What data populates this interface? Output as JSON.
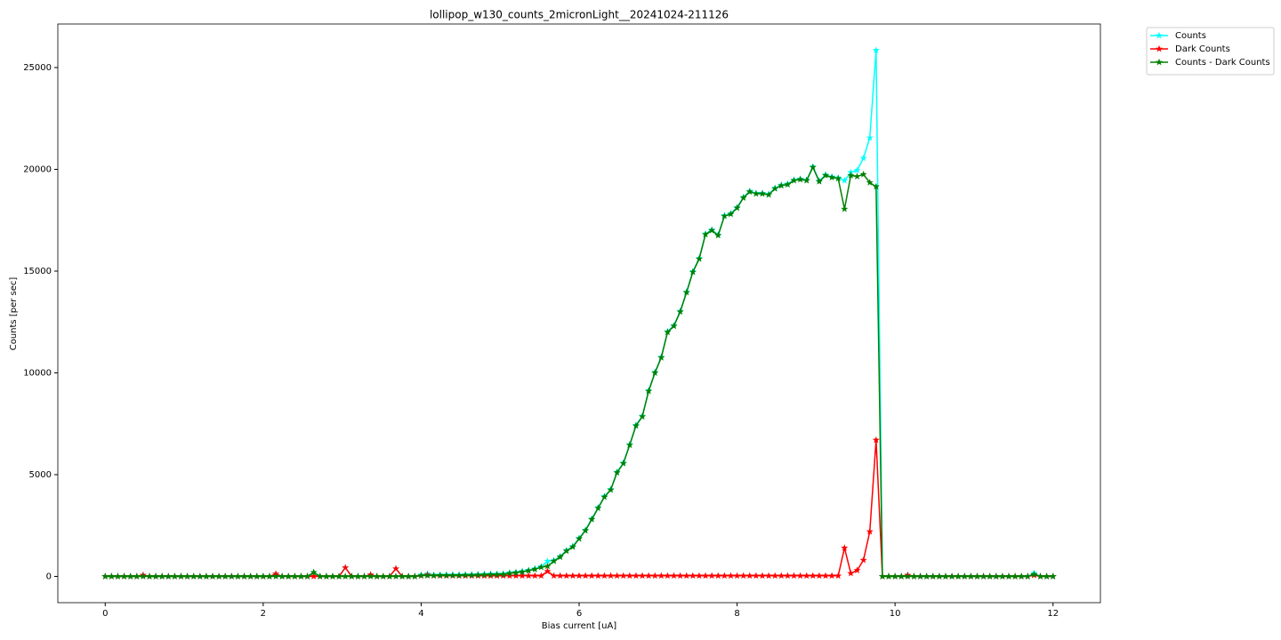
{
  "chart_data": {
    "type": "line",
    "title": "lollipop_w130_counts_2micronLight__20241024-211126",
    "xlabel": "Bias current [uA]",
    "ylabel": "Counts [per sec]",
    "xlim": [
      -0.6,
      12.6
    ],
    "ylim": [
      -1290,
      27140
    ],
    "xticks": [
      0,
      2,
      4,
      6,
      8,
      10,
      12
    ],
    "yticks": [
      0,
      5000,
      10000,
      15000,
      20000,
      25000
    ],
    "legend": "outside upper right",
    "x": [
      0,
      0.08,
      0.16,
      0.24,
      0.32,
      0.4,
      0.48,
      0.56,
      0.64,
      0.72,
      0.8,
      0.88,
      0.96,
      1.04,
      1.12,
      1.2,
      1.28,
      1.36,
      1.44,
      1.52,
      1.6,
      1.68,
      1.76,
      1.84,
      1.92,
      2,
      2.08,
      2.16,
      2.24,
      2.32,
      2.4,
      2.48,
      2.56,
      2.64,
      2.72,
      2.8,
      2.88,
      2.96,
      3.04,
      3.12,
      3.2,
      3.28,
      3.36,
      3.44,
      3.52,
      3.6,
      3.68,
      3.76,
      3.84,
      3.92,
      4,
      4.08,
      4.16,
      4.24,
      4.32,
      4.4,
      4.48,
      4.56,
      4.64,
      4.72,
      4.8,
      4.88,
      4.96,
      5.04,
      5.12,
      5.2,
      5.28,
      5.36,
      5.44,
      5.52,
      5.6,
      5.68,
      5.76,
      5.84,
      5.92,
      6,
      6.08,
      6.16,
      6.24,
      6.32,
      6.4,
      6.48,
      6.56,
      6.64,
      6.72,
      6.8,
      6.88,
      6.96,
      7.04,
      7.12,
      7.2,
      7.28,
      7.36,
      7.44,
      7.52,
      7.6,
      7.68,
      7.76,
      7.84,
      7.92,
      8,
      8.08,
      8.16,
      8.24,
      8.32,
      8.4,
      8.48,
      8.56,
      8.64,
      8.72,
      8.8,
      8.88,
      8.96,
      9.04,
      9.12,
      9.2,
      9.28,
      9.36,
      9.44,
      9.52,
      9.6,
      9.68,
      9.76,
      9.84,
      9.92,
      10,
      10.08,
      10.16,
      10.24,
      10.32,
      10.4,
      10.48,
      10.56,
      10.64,
      10.72,
      10.8,
      10.88,
      10.96,
      11.04,
      11.12,
      11.2,
      11.28,
      11.36,
      11.44,
      11.52,
      11.6,
      11.68,
      11.76,
      11.84,
      11.92,
      12
    ],
    "series": [
      {
        "name": "Counts",
        "color": "#00ffff",
        "values": [
          0,
          0,
          0,
          0,
          0,
          0,
          60,
          0,
          0,
          0,
          0,
          0,
          0,
          0,
          0,
          0,
          0,
          0,
          0,
          0,
          0,
          0,
          0,
          0,
          0,
          0,
          0,
          120,
          0,
          0,
          0,
          0,
          0,
          200,
          0,
          0,
          0,
          0,
          430,
          0,
          0,
          0,
          80,
          0,
          0,
          0,
          380,
          0,
          0,
          0,
          70,
          120,
          70,
          80,
          80,
          80,
          80,
          90,
          90,
          100,
          110,
          120,
          120,
          130,
          180,
          210,
          250,
          310,
          380,
          480,
          750,
          780,
          980,
          1280,
          1480,
          1880,
          2280,
          2830,
          3380,
          3930,
          4280,
          5130,
          5580,
          6480,
          7430,
          7880,
          9130,
          10030,
          10780,
          12030,
          12330,
          13030,
          13980,
          14980,
          15630,
          16830,
          17030,
          16780,
          17730,
          17830,
          18130,
          18630,
          18930,
          18830,
          18830,
          18780,
          19080,
          19230,
          19280,
          19480,
          19530,
          19480,
          20130,
          19430,
          19730,
          19630,
          19580,
          19450,
          19850,
          19950,
          20550,
          21550,
          25850,
          0,
          0,
          0,
          0,
          60,
          0,
          0,
          0,
          0,
          0,
          0,
          0,
          0,
          0,
          0,
          0,
          0,
          0,
          0,
          0,
          0,
          0,
          0,
          0,
          160,
          0,
          0,
          0
        ]
      },
      {
        "name": "Dark Counts",
        "color": "#ff0000",
        "values": [
          0,
          0,
          0,
          0,
          0,
          0,
          60,
          0,
          0,
          0,
          0,
          0,
          0,
          0,
          0,
          0,
          0,
          0,
          0,
          0,
          0,
          0,
          0,
          0,
          0,
          0,
          0,
          120,
          0,
          0,
          0,
          0,
          0,
          0,
          0,
          0,
          0,
          0,
          430,
          0,
          0,
          0,
          80,
          0,
          0,
          0,
          380,
          0,
          0,
          0,
          30,
          80,
          30,
          30,
          30,
          30,
          30,
          30,
          30,
          30,
          30,
          30,
          30,
          30,
          30,
          30,
          30,
          30,
          30,
          30,
          250,
          30,
          30,
          30,
          30,
          30,
          30,
          30,
          30,
          30,
          30,
          30,
          30,
          30,
          30,
          30,
          30,
          30,
          30,
          30,
          30,
          30,
          30,
          30,
          30,
          30,
          30,
          30,
          30,
          30,
          30,
          30,
          30,
          30,
          30,
          30,
          30,
          30,
          30,
          30,
          30,
          30,
          30,
          30,
          30,
          30,
          30,
          1400,
          150,
          300,
          800,
          2200,
          6700,
          0,
          0,
          0,
          0,
          60,
          0,
          0,
          0,
          0,
          0,
          0,
          0,
          0,
          0,
          0,
          0,
          0,
          0,
          0,
          0,
          0,
          0,
          0,
          0,
          60,
          0,
          0,
          0
        ]
      },
      {
        "name": "Counts - Dark Counts",
        "color": "#008000",
        "values": [
          0,
          0,
          0,
          0,
          0,
          0,
          0,
          0,
          0,
          0,
          0,
          0,
          0,
          0,
          0,
          0,
          0,
          0,
          0,
          0,
          0,
          0,
          0,
          0,
          0,
          0,
          0,
          0,
          0,
          0,
          0,
          0,
          0,
          200,
          0,
          0,
          0,
          0,
          0,
          0,
          0,
          0,
          0,
          0,
          0,
          0,
          0,
          0,
          0,
          0,
          40,
          40,
          40,
          50,
          50,
          50,
          50,
          60,
          60,
          70,
          80,
          90,
          90,
          100,
          150,
          180,
          220,
          280,
          350,
          450,
          500,
          750,
          950,
          1250,
          1450,
          1850,
          2250,
          2800,
          3350,
          3900,
          4250,
          5100,
          5550,
          6450,
          7400,
          7850,
          9100,
          10000,
          10750,
          12000,
          12300,
          13000,
          13950,
          14950,
          15600,
          16800,
          17000,
          16750,
          17700,
          17800,
          18100,
          18600,
          18900,
          18800,
          18800,
          18750,
          19050,
          19200,
          19250,
          19450,
          19500,
          19450,
          20100,
          19400,
          19700,
          19600,
          19550,
          18050,
          19700,
          19650,
          19750,
          19350,
          19150,
          0,
          0,
          0,
          0,
          0,
          0,
          0,
          0,
          0,
          0,
          0,
          0,
          0,
          0,
          0,
          0,
          0,
          0,
          0,
          0,
          0,
          0,
          0,
          0,
          100,
          0,
          0,
          0
        ]
      }
    ]
  }
}
